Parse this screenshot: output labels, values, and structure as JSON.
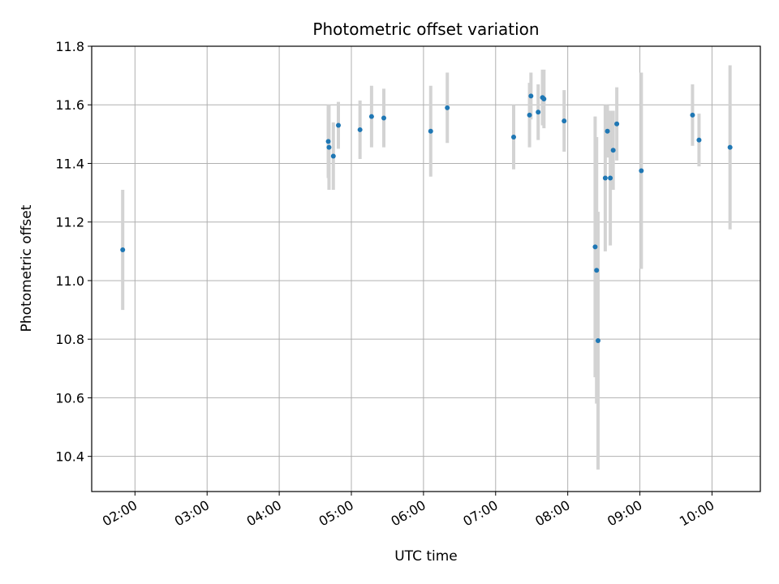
{
  "chart_data": {
    "type": "scatter",
    "title": "Photometric offset variation",
    "xlabel": "UTC time",
    "ylabel": "Photometric offset",
    "xlim_hours": [
      1.4,
      10.67
    ],
    "ylim": [
      10.28,
      11.8
    ],
    "grid": true,
    "x_ticks": [
      {
        "hour": 2,
        "label": "02:00"
      },
      {
        "hour": 3,
        "label": "03:00"
      },
      {
        "hour": 4,
        "label": "04:00"
      },
      {
        "hour": 5,
        "label": "05:00"
      },
      {
        "hour": 6,
        "label": "06:00"
      },
      {
        "hour": 7,
        "label": "07:00"
      },
      {
        "hour": 8,
        "label": "08:00"
      },
      {
        "hour": 9,
        "label": "09:00"
      },
      {
        "hour": 10,
        "label": "10:00"
      }
    ],
    "y_ticks": [
      {
        "value": 10.4,
        "label": "10.4"
      },
      {
        "value": 10.6,
        "label": "10.6"
      },
      {
        "value": 10.8,
        "label": "10.8"
      },
      {
        "value": 11.0,
        "label": "11.0"
      },
      {
        "value": 11.2,
        "label": "11.2"
      },
      {
        "value": 11.4,
        "label": "11.4"
      },
      {
        "value": 11.6,
        "label": "11.6"
      },
      {
        "value": 11.8,
        "label": "11.8"
      }
    ],
    "marker_color": "#1f77b4",
    "errorbar_color": "#d3d3d3",
    "points": [
      {
        "x": 1.83,
        "y": 11.105,
        "err": 0.205
      },
      {
        "x": 4.68,
        "y": 11.475,
        "err": 0.125
      },
      {
        "x": 4.69,
        "y": 11.455,
        "err": 0.145
      },
      {
        "x": 4.75,
        "y": 11.425,
        "err": 0.115
      },
      {
        "x": 4.82,
        "y": 11.53,
        "err": 0.08
      },
      {
        "x": 5.12,
        "y": 11.515,
        "err": 0.1
      },
      {
        "x": 5.28,
        "y": 11.56,
        "err": 0.105
      },
      {
        "x": 5.45,
        "y": 11.555,
        "err": 0.1
      },
      {
        "x": 6.1,
        "y": 11.51,
        "err": 0.155
      },
      {
        "x": 6.33,
        "y": 11.59,
        "err": 0.12
      },
      {
        "x": 7.25,
        "y": 11.49,
        "err": 0.11
      },
      {
        "x": 7.47,
        "y": 11.565,
        "err": 0.11
      },
      {
        "x": 7.49,
        "y": 11.63,
        "err": 0.08
      },
      {
        "x": 7.59,
        "y": 11.575,
        "err": 0.095
      },
      {
        "x": 7.65,
        "y": 11.625,
        "err": 0.095
      },
      {
        "x": 7.67,
        "y": 11.62,
        "err": 0.1
      },
      {
        "x": 7.95,
        "y": 11.545,
        "err": 0.105
      },
      {
        "x": 8.38,
        "y": 11.115,
        "err": 0.445
      },
      {
        "x": 8.4,
        "y": 11.035,
        "err": 0.455
      },
      {
        "x": 8.42,
        "y": 10.795,
        "err": 0.44
      },
      {
        "x": 8.52,
        "y": 11.35,
        "err": 0.25
      },
      {
        "x": 8.55,
        "y": 11.51,
        "err": 0.09
      },
      {
        "x": 8.59,
        "y": 11.35,
        "err": 0.23
      },
      {
        "x": 8.63,
        "y": 11.445,
        "err": 0.135
      },
      {
        "x": 8.68,
        "y": 11.535,
        "err": 0.125
      },
      {
        "x": 9.02,
        "y": 11.375,
        "err": 0.335
      },
      {
        "x": 9.73,
        "y": 11.565,
        "err": 0.105
      },
      {
        "x": 9.82,
        "y": 11.48,
        "err": 0.09
      },
      {
        "x": 10.25,
        "y": 11.455,
        "err": 0.28
      }
    ]
  }
}
